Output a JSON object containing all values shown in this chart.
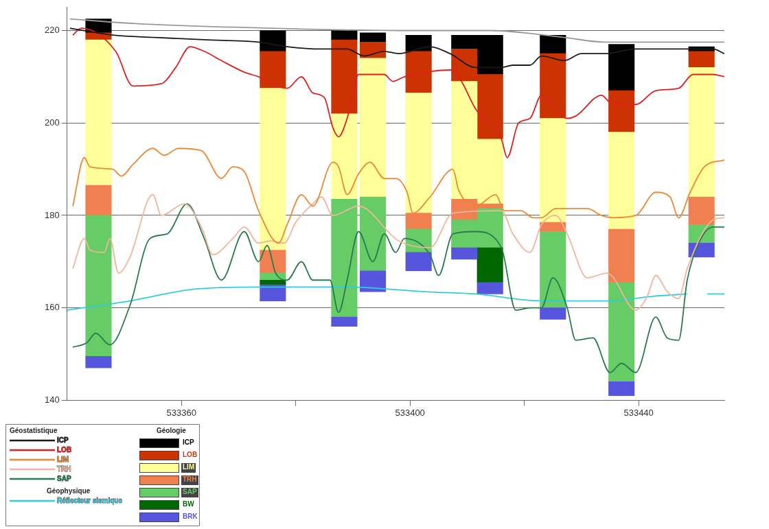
{
  "chart_data": {
    "type": "bar",
    "grid": "y",
    "legend": "bottom left",
    "marker": "none",
    "x": [
      533345.5,
      533376,
      533388.5,
      533393.5,
      533401.5,
      533409.5,
      533414,
      533425,
      533437,
      533451
    ],
    "xlim": [
      533340,
      533455
    ],
    "xticks": [
      533360,
      {
        "value": 533380,
        "label": null
      },
      533400,
      {
        "value": 533420,
        "label": null
      },
      533440
    ],
    "ylim": [
      140,
      225
    ],
    "yticks": [
      140,
      160,
      180,
      200,
      220
    ],
    "annotations": [
      "Géostatistique",
      "Géologie",
      "Géophysique"
    ],
    "series": [
      {
        "type": "line",
        "color": "#999999",
        "x": [
          533340.5,
          533352,
          533376,
          533398,
          533414,
          533427,
          533434,
          533455
        ],
        "values": [
          222.5,
          221.5,
          220.5,
          220,
          220,
          218.5,
          217.5,
          217.5
        ]
      },
      {
        "type": "line",
        "name": "ICP",
        "color": "#1a1a1a",
        "x": [
          533340.5,
          533348,
          533355.5,
          533364,
          533373.5,
          533378.5,
          533384.5,
          533389,
          533392,
          533395.5,
          533398,
          533403.5,
          533407,
          533411.5,
          533416,
          533418,
          533421,
          533423,
          533427,
          533430,
          533434,
          533439.5,
          533448.5,
          533453,
          533455
        ],
        "values": [
          220.5,
          219,
          218.5,
          218,
          217.5,
          216.5,
          216,
          216,
          214.5,
          215.5,
          215,
          216.5,
          215,
          212,
          212,
          212.5,
          212.5,
          214.5,
          213.5,
          215,
          215,
          216,
          216,
          216,
          215
        ]
      },
      {
        "type": "line",
        "name": "LOB",
        "color": "#dd2020",
        "x": [
          533341,
          533342.5,
          533348.5,
          533351.5,
          533356.5,
          533359,
          533361.5,
          533364,
          533367,
          533371,
          533373.5,
          533378.5,
          533381,
          533383,
          533385,
          533386.5,
          533387.5,
          533389,
          533391,
          533395.5,
          533397,
          533399,
          533407.5,
          533409,
          533411.5,
          533416,
          533417,
          533419,
          533421,
          533423,
          533427.5,
          533429,
          533433.5,
          533435,
          533439.5,
          533443,
          533447,
          533449.5,
          533453,
          533455
        ],
        "values": [
          219,
          220.5,
          215.5,
          208,
          208.5,
          212,
          216.5,
          215.5,
          213.5,
          211,
          210,
          207.5,
          210,
          206.5,
          205.5,
          199,
          197,
          201,
          210.5,
          210.5,
          209,
          210,
          211.5,
          209,
          203,
          196.5,
          192.5,
          200,
          201,
          206,
          201,
          201.5,
          206,
          204.5,
          204,
          207,
          207.5,
          210.5,
          210.5,
          210
        ]
      },
      {
        "type": "line",
        "name": "LIM",
        "color": "#ee8833",
        "x": [
          533341,
          533343,
          533344,
          533348,
          533349.5,
          533351.5,
          533355,
          533357,
          533359.5,
          533363.5,
          533367,
          533369,
          533371,
          533373.5,
          533377,
          533378.5,
          533381,
          533383,
          533386.5,
          533387.5,
          533389,
          533391,
          533393,
          533395.5,
          533397.5,
          533399.5,
          533400.5,
          533403.5,
          533407.5,
          533408.5,
          533411.5,
          533415,
          533416.5,
          533419.5,
          533421.5,
          533423,
          533425.5,
          533431,
          533433.5,
          533435.5,
          533439.5,
          533443,
          533445.5,
          533447,
          533449,
          533451.5,
          533455
        ],
        "values": [
          182,
          192.5,
          190.5,
          190,
          188.5,
          191,
          194.5,
          193,
          194.5,
          194,
          188,
          190.5,
          189.5,
          181,
          174,
          178,
          184.5,
          182,
          191.5,
          190.5,
          184.5,
          189,
          191.5,
          188,
          188,
          185,
          180.5,
          184,
          190,
          185.5,
          182,
          184.5,
          181,
          181,
          179.5,
          179.5,
          181.5,
          181.5,
          180,
          179.5,
          180,
          185,
          184,
          179.5,
          185,
          190.5,
          192
        ]
      },
      {
        "type": "line",
        "name": "TRH",
        "color": "#f4b49c",
        "x": [
          533341,
          533343,
          533344,
          533346.5,
          533347.5,
          533349,
          533351,
          533355,
          533356.5,
          533360.5,
          533363.5,
          533365.5,
          533369,
          533371,
          533373.5,
          533375.5,
          533378,
          533380,
          533383,
          533384.5,
          533386.5,
          533391,
          533398,
          533403.5,
          533407.5,
          533416,
          533418,
          533421,
          533423,
          533425.5,
          533427.5,
          533431,
          533434.5,
          533439.5,
          533441.5,
          533443,
          533445,
          533447,
          533448.5,
          533453,
          533455
        ],
        "values": [
          168.5,
          175,
          172.5,
          172,
          175,
          167.5,
          171,
          184.5,
          180,
          182.5,
          177.5,
          171.5,
          175,
          177.5,
          174,
          174.5,
          174,
          178.5,
          182.5,
          184,
          180,
          182,
          174.5,
          173,
          180.5,
          181,
          176,
          172,
          178,
          180,
          176,
          166.5,
          167.5,
          159.5,
          162.5,
          167,
          163.5,
          162,
          168.5,
          179,
          179.5
        ]
      },
      {
        "type": "line",
        "name": "SAP",
        "color": "#2a7a50",
        "x": [
          533341,
          533343.5,
          533345,
          533347.5,
          533351,
          533354.5,
          533357.5,
          533361,
          533364,
          533367,
          533371,
          533373.5,
          533375,
          533376.5,
          533378.5,
          533381,
          533383,
          533386,
          533387.5,
          533389,
          533391,
          533393.5,
          533395.5,
          533397.5,
          533399,
          533403.5,
          533405,
          533407.5,
          533411.5,
          533416,
          533418.5,
          533421,
          533423,
          533425,
          533427.5,
          533429,
          533432,
          533435,
          533437,
          533439.5,
          533443,
          533445,
          533447,
          533448.5,
          533450.5,
          533453,
          533455
        ],
        "values": [
          151.5,
          152.5,
          154.5,
          152,
          160.5,
          175,
          176,
          182.5,
          175,
          166,
          176.5,
          170,
          173.5,
          167.5,
          166,
          170,
          166,
          166,
          159,
          166,
          176.5,
          170,
          176,
          172,
          175,
          171.5,
          167,
          176,
          176.5,
          173,
          159.5,
          160,
          160,
          166.5,
          160,
          153,
          153.5,
          146,
          148,
          146,
          158,
          153.5,
          153,
          166,
          174,
          177.5,
          177.5
        ]
      },
      {
        "type": "line",
        "name": "Réflecteur sismique",
        "color": "#33ccdd",
        "x": [
          533340,
          533351,
          533362,
          533373.5,
          533389,
          533402.5,
          533411.5,
          533423,
          533434.5,
          533442.5,
          533448.5,
          533450,
          533452,
          533455
        ],
        "values": [
          159.5,
          161.5,
          164,
          164.5,
          164.5,
          163.5,
          163,
          161.5,
          161.5,
          162.5,
          163,
          null,
          163,
          163
        ]
      },
      {
        "name": "BRK",
        "color": "#5555dd",
        "base": [
          147,
          161.5,
          156,
          163.5,
          168,
          170.5,
          163,
          157.5,
          141,
          171
        ],
        "values": [
          2.5,
          3.5,
          2,
          4.5,
          4,
          2.5,
          2.5,
          2.5,
          3,
          3
        ]
      },
      {
        "name": "BW",
        "color": "#006600",
        "base": [
          null,
          165,
          null,
          null,
          null,
          null,
          165.5,
          null,
          null,
          null
        ],
        "values": [
          null,
          1,
          null,
          null,
          null,
          null,
          7.5,
          null,
          null,
          null
        ]
      },
      {
        "name": "SAP",
        "color": "#66cc66",
        "base": [
          149.5,
          166,
          158,
          168,
          172,
          173,
          173,
          160,
          144,
          174
        ],
        "values": [
          30.5,
          1.5,
          25.5,
          16,
          5,
          6,
          8.5,
          16.5,
          21.5,
          4
        ]
      },
      {
        "name": "TRH",
        "color": "#f08050",
        "base": [
          180,
          167.5,
          null,
          null,
          177,
          179,
          181.5,
          176.5,
          165.5,
          178
        ],
        "values": [
          6.5,
          5,
          null,
          null,
          3.5,
          4.5,
          1,
          2,
          11.5,
          6
        ]
      },
      {
        "name": "LIM",
        "color": "#ffff99",
        "base": [
          186.5,
          172.5,
          183.5,
          184,
          180.5,
          183.5,
          182.5,
          178.5,
          177,
          184
        ],
        "values": [
          31.5,
          35,
          18.5,
          30,
          26,
          25.5,
          14,
          22.5,
          21,
          28
        ]
      },
      {
        "name": "LOB",
        "color": "#cc3300",
        "base": [
          218,
          207.5,
          202,
          214,
          206.5,
          209,
          196.5,
          201,
          198,
          212
        ],
        "values": [
          1.5,
          8,
          16,
          3.5,
          9,
          7,
          14,
          14,
          9,
          3.5
        ]
      },
      {
        "name": "ICP",
        "color": "#000000",
        "base": [
          219.5,
          215.5,
          218,
          217.5,
          215.5,
          216,
          210.5,
          215,
          207,
          215.5
        ],
        "values": [
          3,
          4.5,
          2,
          2,
          3.5,
          3,
          8.5,
          4,
          10,
          1
        ]
      }
    ]
  }
}
